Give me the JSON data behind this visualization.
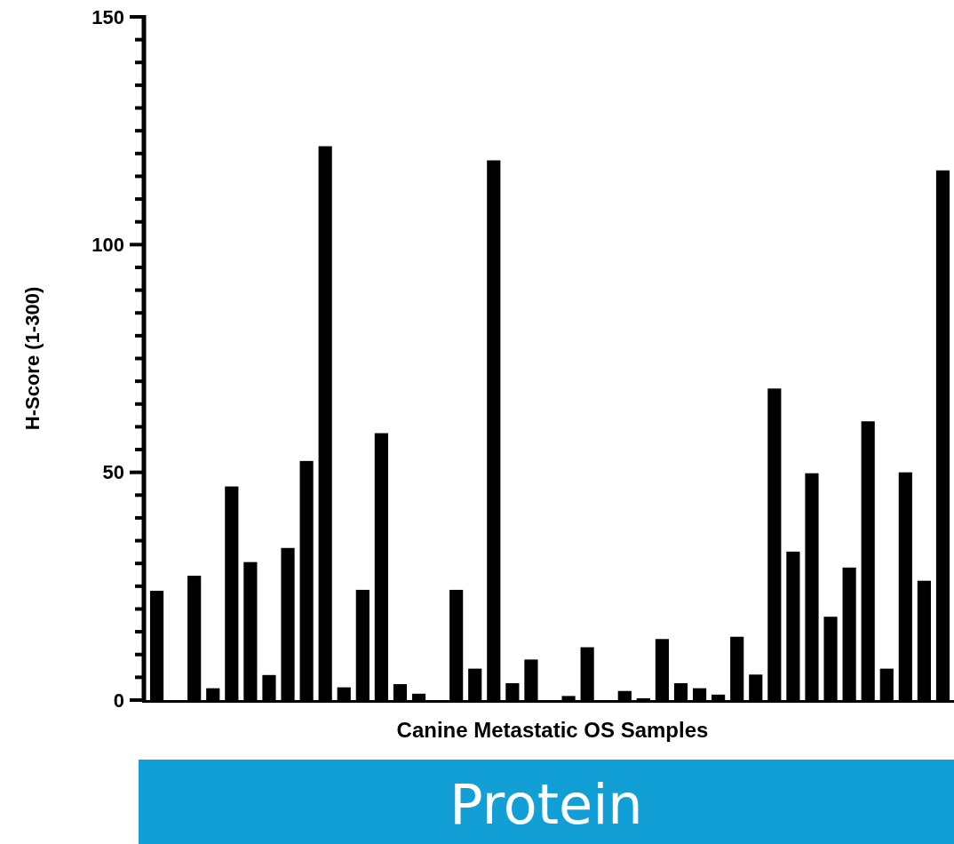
{
  "chart_data": {
    "type": "bar",
    "xlabel": "Canine Metastatic OS Samples",
    "ylabel": "H-Score (1-300)",
    "annotations": [
      "Protein"
    ],
    "categories": [
      null,
      null,
      null,
      null,
      null,
      null,
      null,
      null,
      null,
      null,
      null,
      null,
      null,
      null,
      null,
      null,
      null,
      null,
      null,
      null,
      null,
      null,
      null,
      null,
      null,
      null,
      null,
      null,
      null,
      null,
      null,
      null,
      null,
      null,
      null,
      null,
      null,
      null,
      null,
      null,
      null,
      null,
      null
    ],
    "values": [
      24,
      0,
      27.3,
      2.6,
      46.9,
      30.3,
      5.5,
      33.4,
      52.5,
      121.6,
      2.8,
      24.2,
      58.6,
      3.5,
      1.4,
      0,
      24.2,
      6.9,
      118.5,
      3.7,
      8.9,
      0,
      0.9,
      11.6,
      0,
      2.0,
      0.4,
      13.4,
      3.7,
      2.6,
      1.2,
      13.9,
      5.6,
      68.4,
      32.6,
      49.8,
      18.3,
      29.1,
      61.2,
      6.9,
      50.0,
      26.2,
      116.3
    ],
    "color": "#000000",
    "ylim": [
      0,
      150
    ],
    "yticks": [
      0,
      {
        "value": 5,
        "label": null
      },
      {
        "value": 10,
        "label": null
      },
      {
        "value": 15,
        "label": null
      },
      {
        "value": 20,
        "label": null
      },
      {
        "value": 25,
        "label": null
      },
      {
        "value": 30,
        "label": null
      },
      {
        "value": 35,
        "label": null
      },
      {
        "value": 40,
        "label": null
      },
      {
        "value": 45,
        "label": null
      },
      50,
      {
        "value": 55,
        "label": null
      },
      {
        "value": 60,
        "label": null
      },
      {
        "value": 65,
        "label": null
      },
      {
        "value": 70,
        "label": null
      },
      {
        "value": 75,
        "label": null
      },
      {
        "value": 80,
        "label": null
      },
      {
        "value": 85,
        "label": null
      },
      {
        "value": 90,
        "label": null
      },
      {
        "value": 95,
        "label": null
      },
      100,
      {
        "value": 105,
        "label": null
      },
      {
        "value": 110,
        "label": null
      },
      {
        "value": 115,
        "label": null
      },
      {
        "value": 120,
        "label": null
      },
      {
        "value": 125,
        "label": null
      },
      {
        "value": 130,
        "label": null
      },
      {
        "value": 135,
        "label": null
      },
      {
        "value": 140,
        "label": null
      },
      {
        "value": 145,
        "label": null
      },
      150
    ],
    "grid": false
  }
}
